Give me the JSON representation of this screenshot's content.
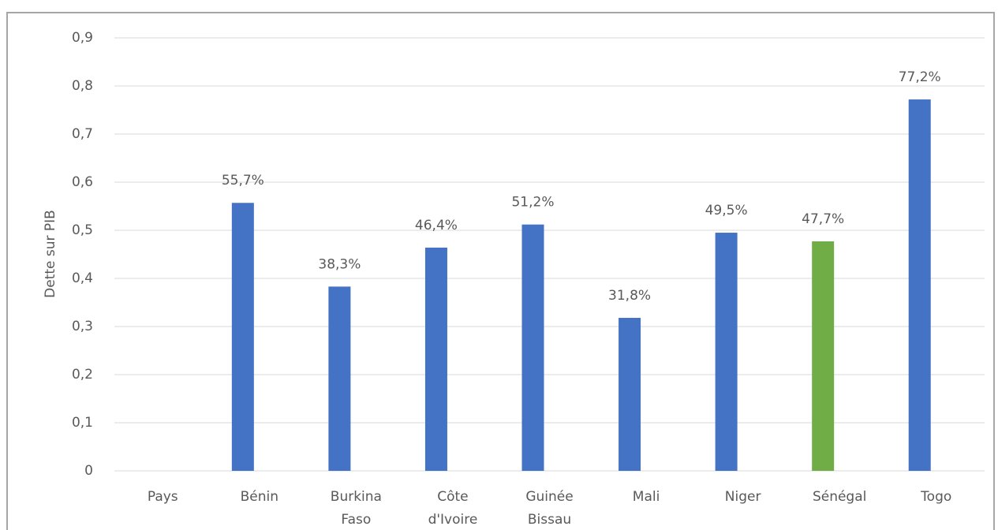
{
  "chart_data": {
    "type": "bar",
    "y_label": "Dette sur PIB",
    "categories": [
      "Pays",
      "Bénin",
      "Burkina Faso",
      "Côte d'Ivoire",
      "Guinée Bissau",
      "Mali",
      "Niger",
      "Sénégal",
      "Togo"
    ],
    "values": [
      null,
      0.557,
      0.383,
      0.464,
      0.512,
      0.318,
      0.495,
      0.477,
      0.772
    ],
    "value_labels": [
      null,
      "55,7%",
      "38,3%",
      "46,4%",
      "51,2%",
      "31,8%",
      "49,5%",
      "47,7%",
      "77,2%"
    ],
    "colors": [
      "#4472c4",
      "#4472c4",
      "#4472c4",
      "#4472c4",
      "#4472c4",
      "#4472c4",
      "#4472c4",
      "#70ad47",
      "#4472c4"
    ],
    "ylim": [
      0,
      0.9
    ],
    "yticks": [
      0,
      {
        "value": 0.1,
        "label": "0,1"
      },
      {
        "value": 0.2,
        "label": "0,2"
      },
      {
        "value": 0.3,
        "label": "0,3"
      },
      {
        "value": 0.4,
        "label": "0,4"
      },
      {
        "value": 0.5,
        "label": "0,5"
      },
      {
        "value": 0.6,
        "label": "0,6"
      },
      {
        "value": 0.7,
        "label": "0,7"
      },
      {
        "value": 0.8,
        "label": "0,8"
      },
      {
        "value": 0.9,
        "label": "0,9"
      }
    ],
    "grid": true
  }
}
